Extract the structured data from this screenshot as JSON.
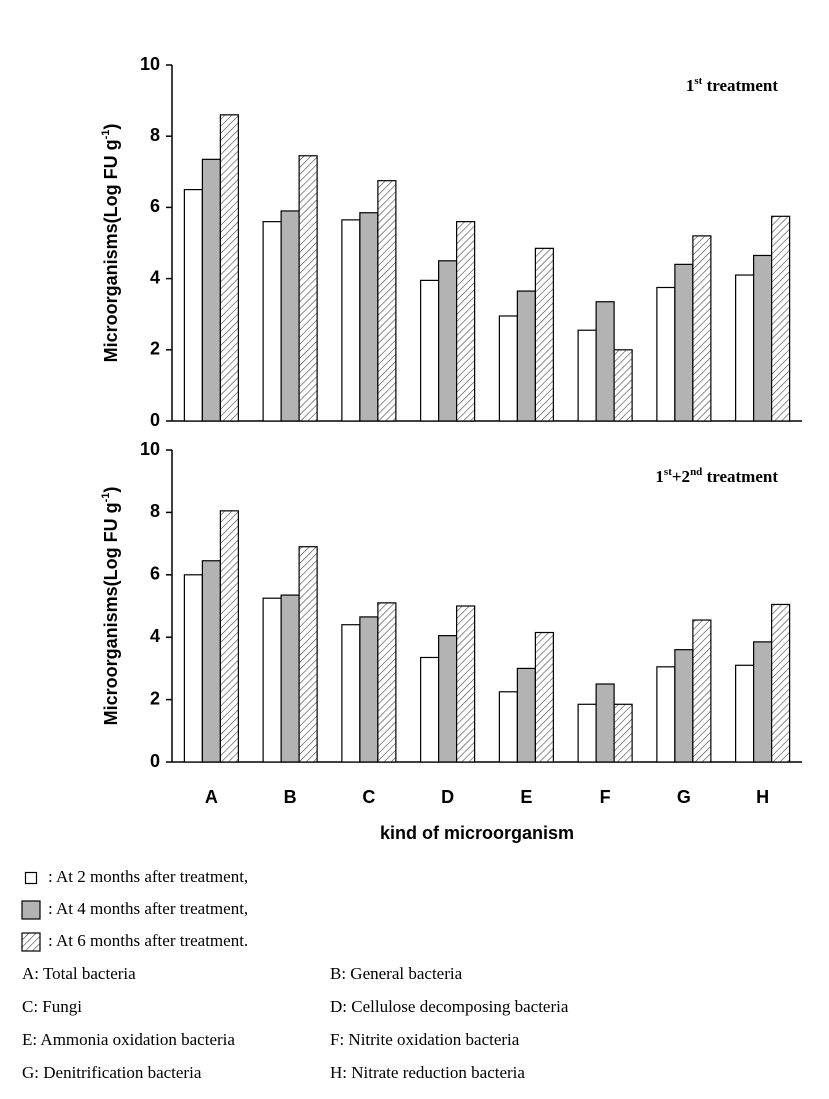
{
  "chart_data": [
    {
      "type": "bar",
      "ylabel": [
        "Microorganisms(Log FU g",
        "-1",
        ")"
      ],
      "annotation": [
        "1",
        "st",
        "  treatment"
      ],
      "categories": [
        null,
        null,
        null,
        null,
        null,
        null,
        null,
        null
      ],
      "series": [
        {
          "color": "#ffffff",
          "values": [
            6.5,
            5.6,
            5.65,
            3.95,
            2.95,
            2.55,
            3.75,
            4.1
          ]
        },
        {
          "color": "#b3b3b3",
          "values": [
            7.35,
            5.9,
            5.85,
            4.5,
            3.65,
            3.35,
            4.4,
            4.65
          ]
        },
        {
          "color": "#ffffff",
          "pattern": "hatch",
          "values": [
            8.6,
            7.45,
            6.75,
            5.6,
            4.85,
            2.0,
            5.2,
            5.75
          ]
        }
      ],
      "ylim": [
        0,
        10
      ],
      "yticks": [
        0,
        2,
        4,
        6,
        8,
        10
      ]
    },
    {
      "type": "bar",
      "ylabel": [
        "Microorganisms(Log FU g",
        "-1",
        ")"
      ],
      "annotation": [
        "1",
        "st",
        "+2",
        "nd",
        " treatment"
      ],
      "xlabel": "kind of microorganism",
      "categories": [
        "A",
        "B",
        "C",
        "D",
        "E",
        "F",
        "G",
        "H"
      ],
      "series": [
        {
          "name": ": At 2 months after treatment,",
          "color": "#ffffff",
          "values": [
            6.0,
            5.25,
            4.4,
            3.35,
            2.25,
            1.85,
            3.05,
            3.1
          ]
        },
        {
          "name": ": At 4 months after treatment,",
          "color": "#b3b3b3",
          "values": [
            6.45,
            5.35,
            4.65,
            4.05,
            3.0,
            2.5,
            3.6,
            3.85
          ]
        },
        {
          "name": ": At 6 months after treatment.",
          "color": "#ffffff",
          "pattern": "hatch",
          "values": [
            8.05,
            6.9,
            5.1,
            5.0,
            4.15,
            1.85,
            4.55,
            5.05
          ]
        }
      ],
      "ylim": [
        0,
        10
      ],
      "yticks": [
        0,
        2,
        4,
        6,
        8,
        10
      ]
    }
  ],
  "key": [
    "A:  Total bacteria",
    "B:  General bacteria",
    "C:  Fungi",
    "D:  Cellulose decomposing bacteria",
    "E:  Ammonia oxidation bacteria",
    "F:  Nitrite oxidation bacteria",
    "G:  Denitrification bacteria",
    "H:  Nitrate reduction bacteria"
  ]
}
